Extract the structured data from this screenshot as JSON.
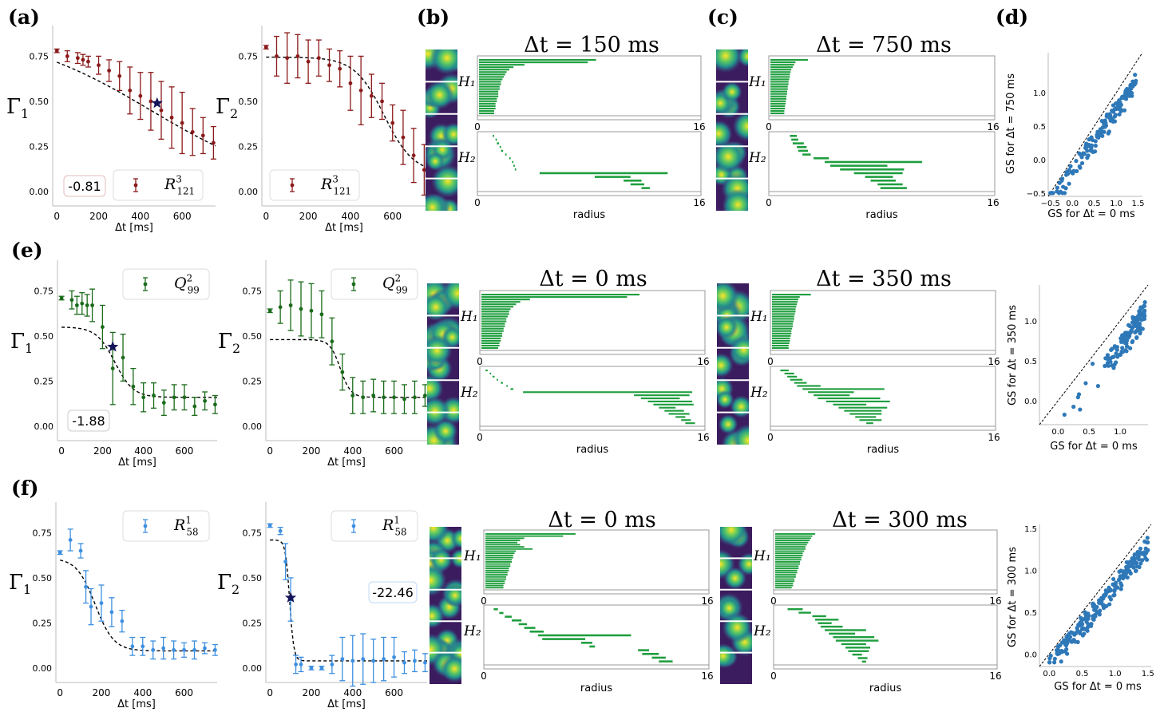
{
  "panel_labels": [
    "(a)",
    "(b)",
    "(c)",
    "(d)",
    "(e)",
    "(f)"
  ],
  "common": {
    "xlabel": "Δt [ms]",
    "radius_label": "radius",
    "h1": "H₁",
    "h2": "H₂",
    "g1": "Γ₁",
    "g2": "Γ₂"
  },
  "chart_data": [
    {
      "id": "a1",
      "type": "errorbar",
      "row": "a",
      "col": 1,
      "ylabel": "Γ1",
      "xlabel": "Δt [ms]",
      "xlim": [
        -20,
        760
      ],
      "ylim": [
        -0.08,
        0.92
      ],
      "xticks": [
        0,
        200,
        400,
        600
      ],
      "yticks": [
        0.0,
        0.25,
        0.5,
        0.75
      ],
      "color": "#8b1a1a",
      "legend": "R^3_121",
      "box_value": "-0.81",
      "x": [
        0,
        50,
        100,
        125,
        150,
        200,
        250,
        300,
        350,
        400,
        450,
        500,
        550,
        600,
        650,
        700,
        750
      ],
      "y": [
        0.78,
        0.75,
        0.74,
        0.73,
        0.72,
        0.7,
        0.67,
        0.64,
        0.56,
        0.53,
        0.5,
        0.45,
        0.41,
        0.38,
        0.33,
        0.31,
        0.27
      ],
      "err": [
        0.01,
        0.03,
        0.03,
        0.03,
        0.03,
        0.05,
        0.06,
        0.08,
        0.13,
        0.13,
        0.16,
        0.16,
        0.17,
        0.17,
        0.13,
        0.1,
        0.09
      ],
      "fit": {
        "a": 0.9,
        "b": 0.0,
        "c": 450,
        "d": 330
      },
      "star": {
        "x": 480,
        "y": 0.49
      }
    },
    {
      "id": "a2",
      "type": "errorbar",
      "row": "a",
      "col": 2,
      "ylabel": "Γ2",
      "xlabel": "Δt [ms]",
      "xlim": [
        -20,
        760
      ],
      "ylim": [
        -0.08,
        0.92
      ],
      "xticks": [
        0,
        200,
        400,
        600
      ],
      "yticks": [
        0.0,
        0.25,
        0.5,
        0.75
      ],
      "color": "#8b1a1a",
      "legend": "R^3_121",
      "x": [
        0,
        50,
        100,
        150,
        200,
        250,
        300,
        350,
        400,
        450,
        500,
        550,
        600,
        650,
        700,
        750
      ],
      "y": [
        0.8,
        0.75,
        0.74,
        0.75,
        0.72,
        0.74,
        0.7,
        0.68,
        0.6,
        0.56,
        0.53,
        0.5,
        0.38,
        0.3,
        0.2,
        0.12
      ],
      "err": [
        0.01,
        0.11,
        0.14,
        0.12,
        0.12,
        0.1,
        0.09,
        0.1,
        0.15,
        0.19,
        0.12,
        0.1,
        0.1,
        0.15,
        0.15,
        0.14
      ],
      "fit": {
        "a": 0.745,
        "b": 0.1,
        "c": 560,
        "d": 70
      }
    },
    {
      "id": "e1",
      "type": "errorbar",
      "row": "e",
      "col": 1,
      "ylabel": "Γ1",
      "xlabel": "Δt [ms]",
      "xlim": [
        -20,
        760
      ],
      "ylim": [
        -0.08,
        0.92
      ],
      "xticks": [
        0,
        200,
        400,
        600
      ],
      "yticks": [
        0.0,
        0.25,
        0.5,
        0.75
      ],
      "color": "#1a6b1a",
      "legend": "Q^2_99",
      "box_value": "-1.88",
      "x": [
        0,
        50,
        75,
        100,
        125,
        150,
        200,
        250,
        300,
        350,
        400,
        450,
        500,
        550,
        600,
        650,
        700,
        750
      ],
      "y": [
        0.71,
        0.7,
        0.67,
        0.68,
        0.67,
        0.67,
        0.55,
        0.32,
        0.38,
        0.22,
        0.16,
        0.17,
        0.13,
        0.16,
        0.16,
        0.11,
        0.14,
        0.12
      ],
      "err": [
        0.01,
        0.05,
        0.05,
        0.06,
        0.06,
        0.09,
        0.12,
        0.2,
        0.13,
        0.1,
        0.08,
        0.07,
        0.07,
        0.07,
        0.07,
        0.05,
        0.05,
        0.05
      ],
      "fit": {
        "a": 0.55,
        "b": 0.16,
        "c": 260,
        "d": 45
      },
      "star": {
        "x": 250,
        "y": 0.44
      }
    },
    {
      "id": "e2",
      "type": "errorbar",
      "row": "e",
      "col": 2,
      "ylabel": "Γ2",
      "xlabel": "Δt [ms]",
      "xlim": [
        -20,
        760
      ],
      "ylim": [
        -0.08,
        0.92
      ],
      "xticks": [
        0,
        200,
        400,
        600
      ],
      "yticks": [
        0.0,
        0.25,
        0.5,
        0.75
      ],
      "color": "#1a6b1a",
      "legend": "Q^2_99",
      "x": [
        0,
        50,
        100,
        150,
        200,
        250,
        300,
        350,
        400,
        450,
        500,
        550,
        600,
        650,
        700,
        750
      ],
      "y": [
        0.64,
        0.66,
        0.67,
        0.65,
        0.64,
        0.62,
        0.47,
        0.3,
        0.17,
        0.16,
        0.17,
        0.16,
        0.16,
        0.15,
        0.16,
        0.17
      ],
      "err": [
        0.01,
        0.09,
        0.14,
        0.15,
        0.15,
        0.13,
        0.13,
        0.1,
        0.1,
        0.09,
        0.09,
        0.09,
        0.09,
        0.08,
        0.09,
        0.06
      ],
      "fit": {
        "a": 0.48,
        "b": 0.16,
        "c": 340,
        "d": 25
      }
    },
    {
      "id": "f1",
      "type": "errorbar",
      "row": "f",
      "col": 1,
      "ylabel": "Γ1",
      "xlabel": "Δt [ms]",
      "xlim": [
        -20,
        760
      ],
      "ylim": [
        -0.08,
        0.92
      ],
      "xticks": [
        0,
        200,
        400,
        600
      ],
      "yticks": [
        0.0,
        0.25,
        0.5,
        0.75
      ],
      "color": "#3d8fe0",
      "legend": "R^1_58",
      "x": [
        0,
        50,
        100,
        125,
        150,
        200,
        250,
        300,
        350,
        400,
        450,
        500,
        550,
        600,
        650,
        700,
        750
      ],
      "y": [
        0.64,
        0.71,
        0.65,
        0.45,
        0.34,
        0.36,
        0.31,
        0.26,
        0.12,
        0.12,
        0.1,
        0.11,
        0.1,
        0.1,
        0.1,
        0.11,
        0.1
      ],
      "err": [
        0.01,
        0.06,
        0.04,
        0.09,
        0.1,
        0.1,
        0.08,
        0.06,
        0.05,
        0.05,
        0.05,
        0.06,
        0.05,
        0.04,
        0.05,
        0.03,
        0.03
      ],
      "fit": {
        "a": 0.61,
        "b": 0.095,
        "c": 170,
        "d": 45
      }
    },
    {
      "id": "f2",
      "type": "errorbar",
      "row": "f",
      "col": 2,
      "ylabel": "Γ2",
      "xlabel": "Δt [ms]",
      "xlim": [
        -20,
        760
      ],
      "ylim": [
        -0.08,
        0.92
      ],
      "xticks": [
        0,
        200,
        400,
        600
      ],
      "yticks": [
        0.0,
        0.25,
        0.5,
        0.75
      ],
      "color": "#3d8fe0",
      "legend": "R^1_58",
      "box_value": "-22.46",
      "x": [
        0,
        50,
        75,
        100,
        125,
        150,
        200,
        250,
        300,
        350,
        400,
        450,
        500,
        550,
        600,
        650,
        700,
        750
      ],
      "y": [
        0.79,
        0.76,
        0.59,
        0.38,
        0.02,
        0.02,
        0.0,
        0.0,
        0.02,
        0.05,
        0.04,
        0.05,
        0.04,
        0.05,
        0.06,
        0.03,
        0.04,
        0.03
      ],
      "err": [
        0.01,
        0.02,
        0.1,
        0.12,
        0.05,
        0.04,
        0.01,
        0.01,
        0.05,
        0.12,
        0.14,
        0.14,
        0.12,
        0.12,
        0.11,
        0.06,
        0.06,
        0.05
      ],
      "fit": {
        "a": 0.71,
        "b": 0.04,
        "c": 95,
        "d": 10
      },
      "star": {
        "x": 100,
        "y": 0.39
      }
    },
    {
      "id": "b",
      "type": "barcode",
      "row": "a",
      "col": 3,
      "title": "Δt = 150 ms",
      "xlim": [
        0,
        16
      ],
      "xticks": [
        0,
        16
      ],
      "h1_ends": [
        8.5,
        7.9,
        3.3,
        2.5,
        2.2,
        2.0,
        1.9,
        1.8,
        1.7,
        1.6,
        1.6,
        1.5,
        1.5,
        1.4,
        1.4,
        1.4,
        1.3,
        1.3,
        1.2,
        1.2,
        1.2,
        1.1,
        1.1
      ],
      "h2_bars": [
        [
          1.0,
          1.1
        ],
        [
          1.2,
          1.3
        ],
        [
          1.3,
          1.45
        ],
        [
          1.5,
          1.6
        ],
        [
          1.6,
          1.75
        ],
        [
          1.9,
          2.0
        ],
        [
          2.2,
          2.3
        ],
        [
          2.4,
          2.5
        ],
        [
          2.5,
          2.6
        ],
        [
          2.6,
          2.7
        ],
        [
          4.4,
          13.7
        ],
        [
          8.4,
          11.0
        ],
        [
          10.5,
          11.8
        ],
        [
          11.0,
          12.0
        ],
        [
          11.8,
          12.4
        ]
      ],
      "h2_ymax": 16
    },
    {
      "id": "c",
      "type": "barcode",
      "row": "a",
      "col": 4,
      "title": "Δt = 750 ms",
      "xlim": [
        0,
        16
      ],
      "xticks": [
        0,
        16
      ],
      "h1_ends": [
        2.7,
        1.8,
        1.7,
        1.6,
        1.5,
        1.45,
        1.4,
        1.4,
        1.35,
        1.3,
        1.3,
        1.25,
        1.25,
        1.2,
        1.2,
        1.15,
        1.15,
        1.1,
        1.1,
        1.05,
        1.05,
        1.0,
        1.0
      ],
      "h2_bars": [
        [
          1.4,
          1.9
        ],
        [
          1.5,
          2.0
        ],
        [
          1.6,
          2.4
        ],
        [
          1.9,
          2.6
        ],
        [
          2.0,
          2.7
        ],
        [
          2.3,
          2.9
        ],
        [
          3.1,
          4.2
        ],
        [
          3.9,
          10.9
        ],
        [
          4.3,
          8.4
        ],
        [
          5.0,
          9.6
        ],
        [
          6.0,
          9.5
        ],
        [
          6.8,
          8.8
        ],
        [
          7.2,
          9.0
        ],
        [
          7.7,
          9.5
        ],
        [
          7.9,
          9.8
        ]
      ],
      "h2_ymax": 16
    },
    {
      "id": "e_b",
      "type": "barcode",
      "row": "e",
      "col": 3,
      "title": "Δt = 0 ms",
      "xlim": [
        0,
        16
      ],
      "xticks": [
        0,
        16
      ],
      "h1_ends": [
        11.4,
        10.5,
        3.5,
        2.8,
        2.5,
        2.3,
        2.1,
        2.0,
        2.0,
        1.9,
        1.8,
        1.8,
        1.7,
        1.7,
        1.6,
        1.6,
        1.5,
        1.5,
        1.4,
        1.4,
        1.3,
        1.3,
        1.2
      ],
      "h2_bars": [
        [
          0.3,
          0.45
        ],
        [
          0.6,
          0.7
        ],
        [
          0.8,
          0.95
        ],
        [
          1.1,
          1.2
        ],
        [
          1.4,
          1.55
        ],
        [
          1.8,
          1.9
        ],
        [
          2.1,
          2.3
        ],
        [
          3.0,
          15.2
        ],
        [
          11.0,
          15.0
        ],
        [
          11.5,
          14.3
        ],
        [
          12.0,
          15.2
        ],
        [
          12.4,
          15.3
        ],
        [
          12.8,
          14.0
        ],
        [
          13.2,
          14.6
        ],
        [
          13.5,
          15.0
        ],
        [
          14.0,
          14.7
        ],
        [
          14.4,
          15.1
        ],
        [
          14.7,
          15.4
        ]
      ],
      "h2_ymax": 16
    },
    {
      "id": "e_c",
      "type": "barcode",
      "row": "e",
      "col": 4,
      "title": "Δt = 350 ms",
      "xlim": [
        0,
        16
      ],
      "xticks": [
        0,
        16
      ],
      "h1_ends": [
        2.8,
        2.0,
        1.9,
        1.85,
        1.8,
        1.75,
        1.7,
        1.7,
        1.65,
        1.6,
        1.6,
        1.55,
        1.5,
        1.5,
        1.45,
        1.4,
        1.4,
        1.35,
        1.3,
        1.3,
        1.25,
        1.2,
        1.2
      ],
      "h2_bars": [
        [
          0.6,
          1.2
        ],
        [
          0.9,
          1.6
        ],
        [
          1.1,
          1.8
        ],
        [
          1.3,
          2.2
        ],
        [
          1.6,
          2.5
        ],
        [
          1.8,
          3.5
        ],
        [
          2.2,
          8.1
        ],
        [
          2.6,
          5.9
        ],
        [
          3.0,
          5.6
        ],
        [
          3.3,
          7.8
        ],
        [
          3.9,
          8.5
        ],
        [
          4.4,
          6.8
        ],
        [
          4.8,
          8.3
        ],
        [
          5.2,
          7.9
        ],
        [
          5.6,
          7.9
        ],
        [
          6.0,
          7.5
        ],
        [
          6.3,
          7.9
        ],
        [
          6.8,
          7.3
        ]
      ],
      "h2_ymax": 16
    },
    {
      "id": "f_b",
      "type": "barcode",
      "row": "f",
      "col": 3,
      "title": "Δt = 0 ms",
      "xlim": [
        0,
        16
      ],
      "xticks": [
        0,
        16
      ],
      "h1_ends": [
        6.5,
        5.6,
        2.8,
        2.5,
        2.3,
        2.5,
        2.8,
        3.4,
        2.2,
        2.1,
        2.0,
        2.0,
        1.9,
        1.9,
        1.8,
        1.8,
        1.7,
        1.7,
        1.6,
        1.6,
        1.5,
        1.5,
        1.4,
        1.4,
        1.3,
        1.3
      ],
      "h2_bars": [
        [
          0.6,
          0.9
        ],
        [
          1.0,
          1.3
        ],
        [
          1.4,
          1.9
        ],
        [
          1.9,
          2.6
        ],
        [
          2.4,
          3.0
        ],
        [
          2.8,
          3.6
        ],
        [
          3.2,
          4.2
        ],
        [
          3.8,
          10.5
        ],
        [
          4.1,
          7.2
        ],
        [
          6.9,
          7.7
        ],
        [
          7.5,
          7.9
        ],
        [
          11.0,
          11.8
        ],
        [
          11.3,
          12.5
        ],
        [
          12.0,
          13.0
        ],
        [
          12.5,
          13.5
        ]
      ],
      "h2_ymax": 16
    },
    {
      "id": "f_c",
      "type": "barcode",
      "row": "f",
      "col": 4,
      "title": "Δt = 300 ms",
      "xlim": [
        0,
        16
      ],
      "xticks": [
        0,
        16
      ],
      "h1_ends": [
        2.9,
        2.7,
        2.6,
        2.5,
        2.4,
        2.3,
        2.2,
        2.2,
        2.1,
        2.0,
        2.0,
        1.9,
        1.9,
        1.8,
        1.8,
        1.7,
        1.7,
        1.6,
        1.6,
        1.5,
        1.5,
        1.4,
        1.4,
        1.3,
        1.3,
        1.2
      ],
      "h2_bars": [
        [
          0.9,
          2.0
        ],
        [
          1.7,
          2.6
        ],
        [
          2.7,
          3.7
        ],
        [
          2.9,
          4.6
        ],
        [
          3.1,
          4.1
        ],
        [
          3.3,
          4.9
        ],
        [
          3.6,
          6.6
        ],
        [
          3.9,
          5.8
        ],
        [
          4.2,
          7.2
        ],
        [
          4.4,
          7.5
        ],
        [
          4.8,
          6.6
        ],
        [
          5.1,
          6.9
        ],
        [
          5.3,
          6.8
        ],
        [
          5.6,
          6.3
        ],
        [
          6.0,
          6.7
        ],
        [
          6.3,
          6.6
        ]
      ],
      "h2_ymax": 16
    },
    {
      "id": "d1",
      "type": "scatter",
      "row": "a",
      "col": 5,
      "xlabel": "GS for Δt = 0 ms",
      "ylabel": "GS for Δt = 750 ms",
      "xlim": [
        -0.55,
        1.6
      ],
      "ylim": [
        -0.55,
        1.6
      ],
      "xticks": [
        -0.5,
        0.0,
        0.5,
        1.0,
        1.5
      ],
      "yticks": [
        -0.5,
        0.0,
        0.5,
        1.0
      ],
      "xticklabels": [
        "−0.5",
        "0.0",
        "0.5",
        "1.0",
        "1.5"
      ],
      "yticklabels": [
        "−0.5",
        "0.0",
        "0.5",
        "1.0"
      ],
      "color": "#2e78b8",
      "n": 160,
      "seed": 11,
      "xrange": [
        -0.5,
        1.45
      ],
      "slope": 0.93,
      "offset": -0.08,
      "noise": 0.22
    },
    {
      "id": "d2",
      "type": "scatter",
      "row": "e",
      "col": 5,
      "xlabel": "GS for Δt = 0 ms",
      "ylabel": "GS for Δt = 350 ms",
      "xlim": [
        -0.3,
        1.45
      ],
      "ylim": [
        -0.3,
        1.45
      ],
      "xticks": [
        0.0,
        0.5,
        1.0
      ],
      "yticks": [
        0.0,
        0.5,
        1.0
      ],
      "xticklabels": [
        "0.0",
        "0.5",
        "1.0"
      ],
      "yticklabels": [
        "0.0",
        "0.5",
        "1.0"
      ],
      "color": "#2e78b8",
      "n": 130,
      "seed": 23,
      "xrange": [
        0.7,
        1.4
      ],
      "slope": 1.1,
      "offset": -0.3,
      "noise": 0.25
    },
    {
      "id": "d3",
      "type": "scatter",
      "row": "f",
      "col": 5,
      "xlabel": "GS for Δt = 0 ms",
      "ylabel": "GS for Δt = 300 ms",
      "xlim": [
        -0.15,
        1.55
      ],
      "ylim": [
        -0.15,
        1.55
      ],
      "xticks": [
        0.0,
        0.5,
        1.0,
        1.5
      ],
      "yticks": [
        0.0,
        0.5,
        1.0,
        1.5
      ],
      "xticklabels": [
        "0.0",
        "0.5",
        "1.0",
        "1.5"
      ],
      "yticklabels": [
        "0.0",
        "0.5",
        "1.0",
        "1.5"
      ],
      "color": "#2e78b8",
      "n": 200,
      "seed": 37,
      "xrange": [
        0.0,
        1.5
      ],
      "slope": 0.95,
      "offset": -0.05,
      "noise": 0.18
    }
  ]
}
